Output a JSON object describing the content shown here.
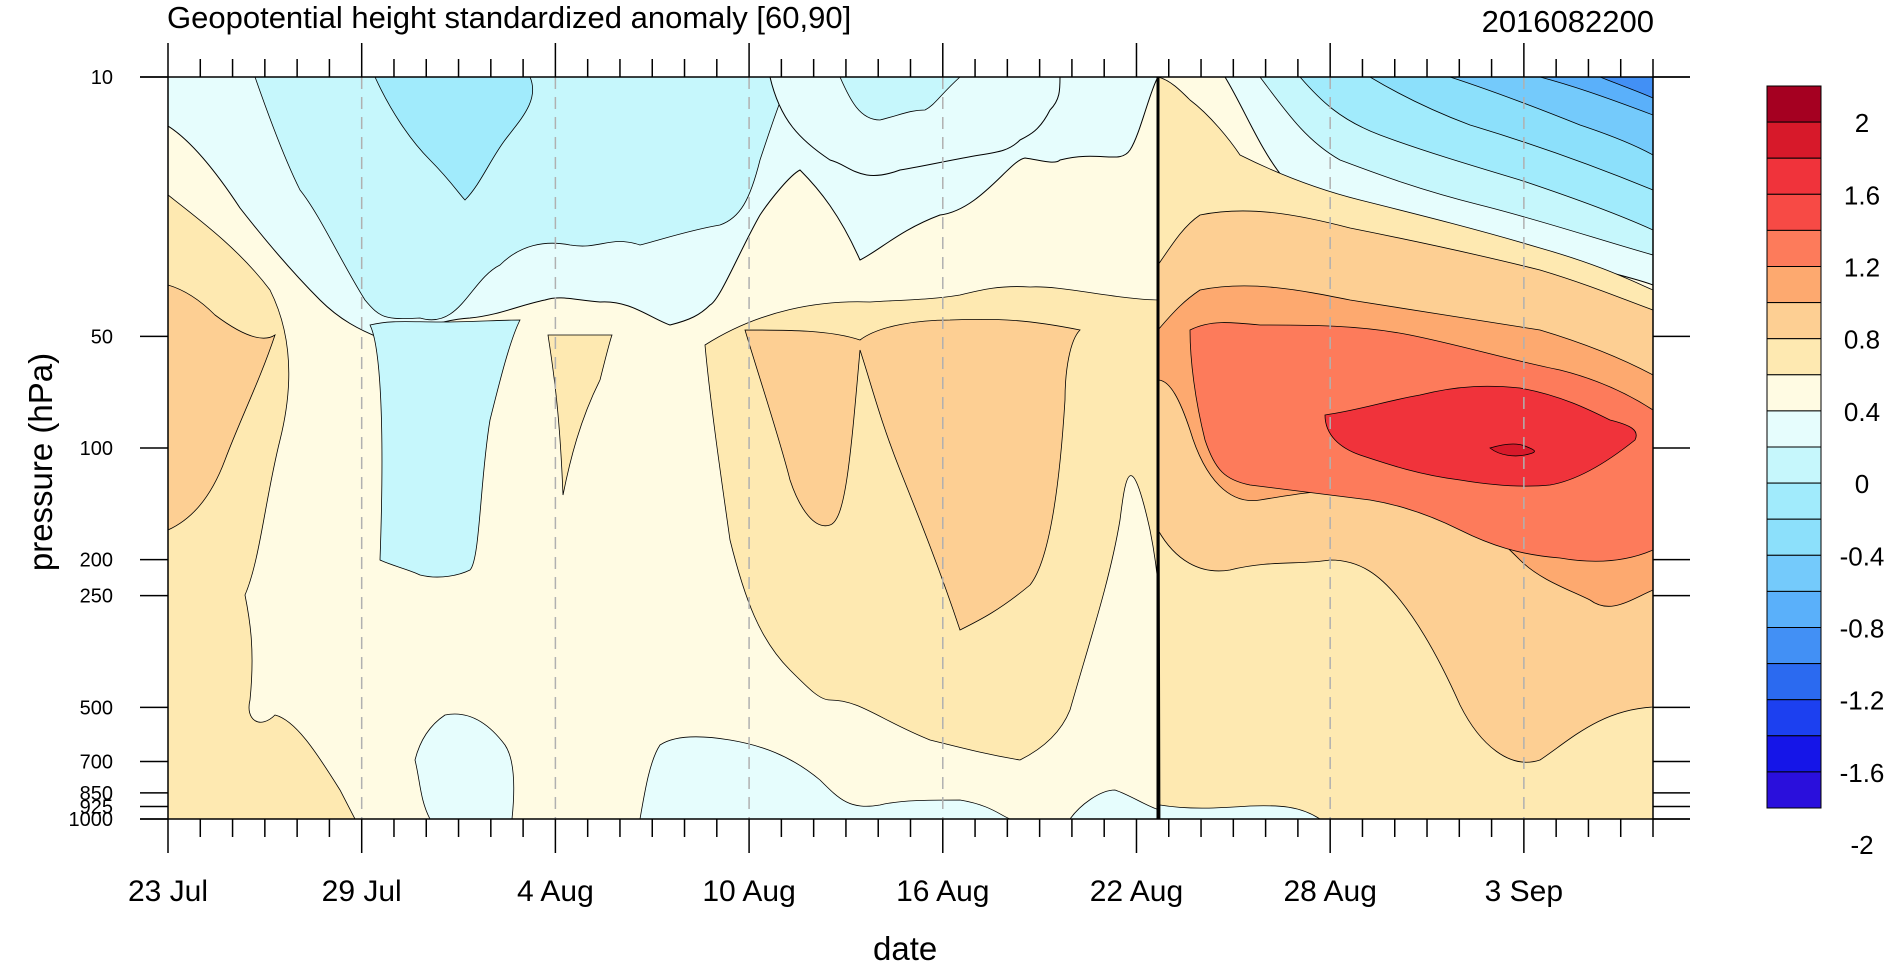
{
  "chart_data": {
    "type": "heatmap",
    "subtype": "filled-contour",
    "title": "Geopotential height standardized anomaly [60,90]",
    "subtitle": "2016082200",
    "xlabel": "date",
    "ylabel": "pressure (hPa)",
    "x_ticks": [
      "23 Jul",
      "29 Jul",
      "4 Aug",
      "10 Aug",
      "16 Aug",
      "22 Aug",
      "28 Aug",
      "3 Sep"
    ],
    "x_range": [
      "2016-07-23",
      "2016-09-07"
    ],
    "y_ticks": [
      "10",
      "50",
      "100",
      "200",
      "250",
      "500",
      "700",
      "850",
      "925",
      "1000"
    ],
    "y_range": [
      1000,
      10
    ],
    "y_scale": "log",
    "grid": "dashed vertical lines at x ticks",
    "marked_date": "22 Aug",
    "colorbar": {
      "placement": "right",
      "labels": [
        "2",
        "1.6",
        "1.2",
        "0.8",
        "0.4",
        "0",
        "-0.4",
        "-0.8",
        "-1.2",
        "-1.6",
        "-2"
      ],
      "colors": [
        "#a50021",
        "#d7192a",
        "#f0333b",
        "#f74a45",
        "#fd7b5b",
        "#fda96f",
        "#fdcf93",
        "#fee9b1",
        "#fffbe3",
        "#e6fdfd",
        "#c6f7fc",
        "#a1ebfc",
        "#8ce0fb",
        "#74cafb",
        "#5ab0fa",
        "#4290f5",
        "#2b6af0",
        "#1c40f0",
        "#1515e8",
        "#2a0fdc"
      ]
    }
  }
}
